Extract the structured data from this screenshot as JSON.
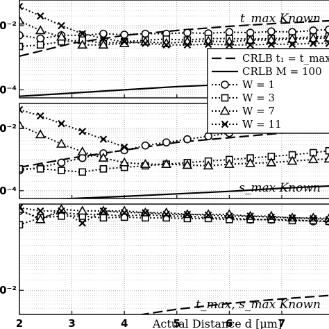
{
  "chart_data": {
    "type": "line",
    "xlabel": "Actual Distance d [μm]",
    "x_tick_labels": [
      "2",
      "3",
      "4",
      "5",
      "6",
      "7"
    ],
    "xlim": [
      2,
      7.9
    ],
    "panels": [
      {
        "note": "t_max Known",
        "ylim_exp": [
          -4.25,
          -1.2
        ],
        "y_tick_labels": [
          {
            "exp": -2,
            "label": "0⁻²"
          },
          {
            "exp": -4,
            "label": "0⁻⁴"
          }
        ],
        "series": [
          {
            "key": "crlb_t1",
            "x": [
              2,
              3,
              4,
              5,
              6,
              7,
              7.9
            ],
            "y": [
              -2.95,
              -2.55,
              -2.3,
              -2.15,
              -2.02,
              -1.92,
              -1.85
            ]
          },
          {
            "key": "crlb_m",
            "x": [
              2,
              3,
              4,
              5,
              6,
              7,
              7.9
            ],
            "y": [
              -4.2,
              -4.1,
              -4.0,
              -3.9,
              -3.83,
              -3.78,
              -3.74
            ]
          },
          {
            "key": "w1",
            "x": [
              2,
              2.4,
              2.8,
              3.2,
              3.6,
              4,
              4.4,
              4.8,
              5.2,
              5.6,
              6,
              6.4,
              6.8,
              7.2,
              7.6,
              7.9
            ],
            "y": [
              -2.3,
              -2.4,
              -2.3,
              -2.3,
              -2.25,
              -2.28,
              -2.25,
              -2.25,
              -2.22,
              -2.24,
              -2.2,
              -2.22,
              -2.18,
              -2.2,
              -2.15,
              -2.12
            ]
          },
          {
            "key": "w3",
            "x": [
              2,
              2.4,
              2.8,
              3.2,
              3.6,
              4,
              4.4,
              4.8,
              5.2,
              5.6,
              6,
              6.4,
              6.8,
              7.2,
              7.6,
              7.9
            ],
            "y": [
              -2.65,
              -2.6,
              -2.5,
              -2.45,
              -2.55,
              -2.5,
              -2.45,
              -2.42,
              -2.45,
              -2.4,
              -2.4,
              -2.42,
              -2.4,
              -2.38,
              -2.35,
              -2.33
            ]
          },
          {
            "key": "w7",
            "x": [
              2,
              2.4,
              2.8,
              3.2,
              3.6,
              4,
              4.4,
              4.8,
              5.2,
              5.6,
              6,
              6.4,
              6.8,
              7.2,
              7.6,
              7.9
            ],
            "y": [
              -1.85,
              -2.15,
              -2.35,
              -2.6,
              -2.6,
              -2.55,
              -2.5,
              -2.55,
              -2.5,
              -2.48,
              -2.5,
              -2.45,
              -2.45,
              -2.42,
              -2.4,
              -2.38
            ]
          },
          {
            "key": "w11",
            "x": [
              2,
              2.4,
              2.8,
              3.2,
              3.6,
              4,
              4.4,
              4.8,
              5.2,
              5.6,
              6,
              6.4,
              6.8,
              7.2,
              7.6,
              7.9
            ],
            "y": [
              -1.4,
              -1.7,
              -2.0,
              -2.25,
              -2.4,
              -2.5,
              -2.55,
              -2.6,
              -2.6,
              -2.58,
              -2.6,
              -2.6,
              -2.58,
              -2.58,
              -2.55,
              -2.55
            ]
          }
        ]
      },
      {
        "note": "s_max Known",
        "ylim_exp": [
          -4.25,
          -1.2
        ],
        "y_tick_labels": [
          {
            "exp": -2,
            "label": "0⁻²"
          },
          {
            "exp": -4,
            "label": "0⁻⁴"
          }
        ],
        "series": [
          {
            "key": "crlb_t1",
            "x": [
              2,
              3,
              4,
              5,
              6,
              7,
              7.9
            ],
            "y": [
              -3.25,
              -2.95,
              -2.7,
              -2.45,
              -2.3,
              -2.15,
              -2.05
            ]
          },
          {
            "key": "crlb_m",
            "x": [
              2,
              3,
              4,
              5,
              6,
              7,
              7.9
            ],
            "y": [
              -4.3,
              -4.25,
              -4.18,
              -4.1,
              -4.02,
              -3.92,
              -3.85
            ]
          },
          {
            "key": "w1",
            "x": [
              2,
              2.4,
              2.8,
              3.2,
              3.6,
              4,
              4.4,
              4.8,
              5.2,
              5.6,
              6
            ],
            "y": [
              -3.35,
              -3.25,
              -3.1,
              -2.95,
              -2.8,
              -2.7,
              -2.55,
              -2.45,
              -2.35,
              -2.25,
              -2.15
            ]
          },
          {
            "key": "w3",
            "x": [
              2,
              2.4,
              2.8,
              3.2,
              3.6,
              4,
              4.4,
              4.8,
              5.2,
              5.6,
              6,
              6.4,
              6.8,
              7.2,
              7.6,
              7.9
            ],
            "y": [
              -3.3,
              -3.3,
              -3.35,
              -3.4,
              -3.3,
              -3.25,
              -3.2,
              -3.15,
              -3.1,
              -3.05,
              -3.0,
              -2.95,
              -2.9,
              -2.85,
              -2.78,
              -2.72
            ]
          },
          {
            "key": "w7",
            "x": [
              2,
              2.4,
              2.8,
              3.2,
              3.6,
              4,
              4.4,
              4.8,
              5.2,
              5.6,
              6,
              6.4,
              6.8,
              7.2,
              7.6,
              7.9
            ],
            "y": [
              -1.9,
              -2.2,
              -2.5,
              -2.75,
              -2.95,
              -3.1,
              -3.15,
              -3.15,
              -3.18,
              -3.2,
              -3.15,
              -3.12,
              -3.1,
              -3.05,
              -3.0,
              -2.98
            ]
          },
          {
            "key": "w11",
            "x": [
              2,
              2.4,
              2.8,
              3.2,
              3.6,
              4
            ],
            "y": [
              -1.4,
              -1.6,
              -1.85,
              -2.1,
              -2.35,
              -2.6
            ]
          }
        ]
      },
      {
        "note": "t_max, s_max Known",
        "ylim_exp": [
          -2.7,
          0.5
        ],
        "y_tick_labels": [
          {
            "exp": -2,
            "label": "0⁻²"
          }
        ],
        "series": [
          {
            "key": "crlb_t1",
            "x": [
              3.5,
              4,
              5,
              6,
              7,
              7.9
            ],
            "y": [
              -2.9,
              -2.78,
              -2.55,
              -2.38,
              -2.25,
              -2.15
            ]
          },
          {
            "key": "crlb_m",
            "x": [],
            "y": []
          },
          {
            "key": "w1",
            "x": [
              2,
              2.4,
              2.8,
              3.2,
              3.6,
              4,
              4.4,
              4.8,
              5.2,
              5.6,
              6,
              6.4,
              6.8,
              7.2,
              7.6,
              7.9
            ],
            "y": [
              0.3,
              0.1,
              0.25,
              0.2,
              0.2,
              0.15,
              0.2,
              0.15,
              0.15,
              0.1,
              0.1,
              0.05,
              0.05,
              0.05,
              0.0,
              0.0
            ]
          },
          {
            "key": "w3",
            "x": [
              2,
              2.4,
              2.8,
              3.2,
              3.6,
              4,
              4.4,
              4.8,
              5.2,
              5.6,
              6,
              6.4,
              6.8,
              7.2,
              7.6,
              7.9
            ],
            "y": [
              -0.1,
              0.1,
              0.15,
              0.15,
              0.1,
              0.12,
              0.1,
              0.1,
              0.08,
              0.08,
              0.05,
              0.05,
              0.05,
              0.02,
              0.02,
              0.0
            ]
          },
          {
            "key": "w7",
            "x": [
              2,
              2.4,
              2.8,
              3.2,
              3.6,
              4,
              4.4,
              4.8,
              5.2,
              5.6,
              6,
              6.4,
              6.8,
              7.2,
              7.6,
              7.9
            ],
            "y": [
              0.35,
              0.05,
              0.35,
              0.3,
              0.3,
              0.3,
              0.25,
              0.25,
              0.2,
              0.2,
              0.2,
              0.15,
              0.15,
              0.1,
              0.1,
              0.08
            ]
          },
          {
            "key": "w11",
            "x": [
              2,
              2.4,
              2.8,
              3.2,
              3.6,
              4,
              4.4,
              4.8,
              5.2,
              5.6,
              6,
              6.4,
              6.8,
              7.2,
              7.6,
              7.9
            ],
            "y": [
              0.4,
              0.3,
              0.3,
              -0.05,
              0.3,
              0.25,
              0.25,
              0.2,
              0.2,
              0.18,
              0.15,
              0.15,
              0.12,
              0.1,
              0.08,
              0.05
            ]
          }
        ]
      }
    ],
    "legend": {
      "placement": "right",
      "entries": [
        {
          "key": "crlb_t1",
          "label": "CRLB t₁ = t_max",
          "style": "dashed"
        },
        {
          "key": "crlb_m",
          "label": "CRLB M = 100",
          "style": "solid"
        },
        {
          "key": "w1",
          "label": "W = 1",
          "marker": "circle"
        },
        {
          "key": "w3",
          "label": "W = 3",
          "marker": "square"
        },
        {
          "key": "w7",
          "label": "W = 7",
          "marker": "triangle"
        },
        {
          "key": "w11",
          "label": "W = 11",
          "marker": "x"
        }
      ]
    },
    "grid": true
  }
}
